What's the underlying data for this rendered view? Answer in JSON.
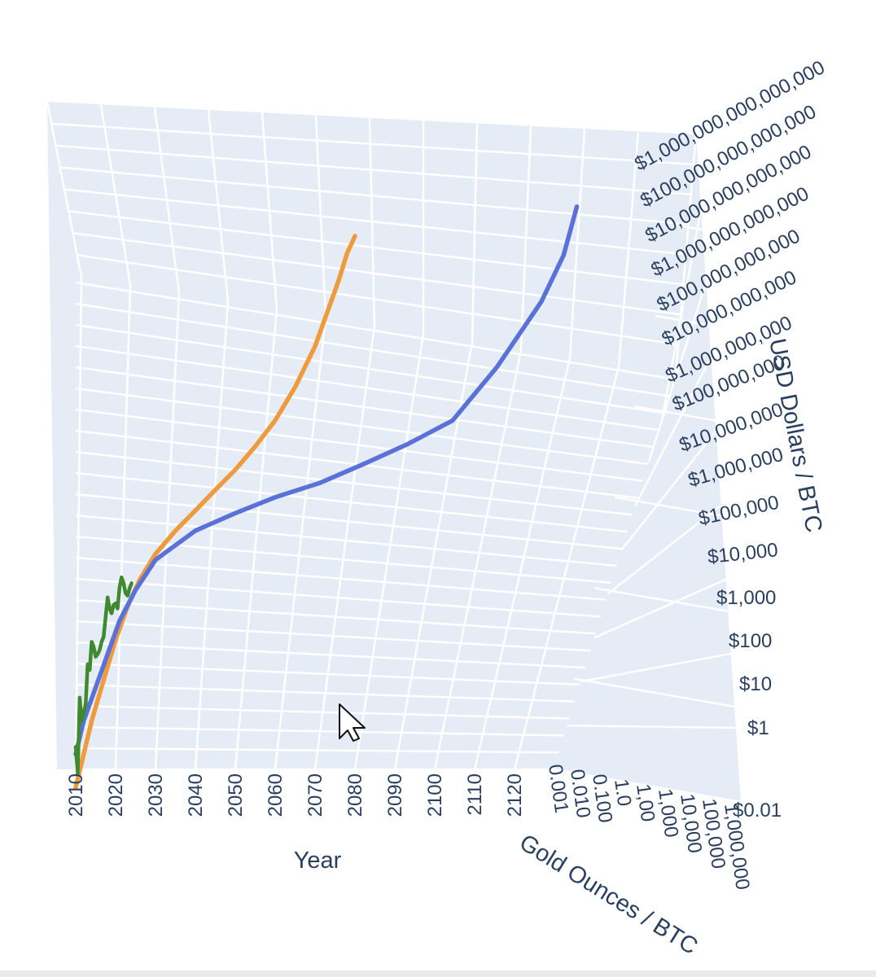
{
  "chart_data": {
    "type": "line",
    "dimensions": "3d",
    "xlabel": "Year",
    "ylabel": "Gold Ounces / BTC",
    "zlabel": "USD Dollars / BTC",
    "x_tick_labels": [
      "2010",
      "2020",
      "2030",
      "2040",
      "2050",
      "2060",
      "2070",
      "2080",
      "2090",
      "2100",
      "2110",
      "2120"
    ],
    "y_tick_labels": [
      "0.001",
      "0.010",
      "0.100",
      "1.0",
      "1,00",
      "1,000",
      "10,000",
      "100,000",
      "1,000,000"
    ],
    "z_tick_labels": [
      "$0.01",
      "$1",
      "$10",
      "$100",
      "$1,000",
      "$10,000",
      "$100,000",
      "$1,000,000",
      "$10,000,000",
      "$100,000,000",
      "$1,000,000,000",
      "$10,000,000,000",
      "$100,000,000,000",
      "$1,000,000,000,000",
      "$10,000,000,000,000",
      "$100,000,000,000,000",
      "$1,000,000,000,000,000"
    ],
    "x_range": [
      2010,
      2130
    ],
    "z_scale": "log",
    "background": "#e5ecf6",
    "grid": true,
    "legend": "none",
    "series": [
      {
        "color": "#ef9a3d",
        "x": [
          2010,
          2012,
          2014,
          2017,
          2020,
          2023,
          2026,
          2030,
          2035,
          2040,
          2045,
          2050,
          2055,
          2060,
          2065,
          2070,
          2073,
          2076,
          2078,
          2080
        ],
        "z": [
          0.03,
          0.3,
          3,
          50,
          800,
          8000,
          50000,
          300000,
          1500000,
          6000000,
          25000000,
          100000000,
          500000000,
          3000000000,
          30000000000,
          500000000000,
          5000000000000,
          50000000000000,
          300000000000000,
          1000000000000000
        ]
      },
      {
        "color": "#5a72d8",
        "x": [
          2010,
          2012,
          2015,
          2018,
          2021,
          2025,
          2030,
          2040,
          2050,
          2060,
          2070,
          2080,
          2090,
          2100,
          2110,
          2120,
          2125,
          2128
        ],
        "z": [
          0.3,
          3,
          30,
          300,
          3000,
          25000,
          200000,
          1500000,
          5000000,
          15000000,
          40000000,
          150000000,
          600000000,
          3000000000,
          20000000000,
          300000000000,
          3000000000000,
          50000000000000
        ]
      },
      {
        "color": "#3f8a2e",
        "x": [
          2010.0,
          2010.5,
          2011.0,
          2011.5,
          2012.0,
          2012.5,
          2013.0,
          2013.5,
          2014.0,
          2014.5,
          2015.0,
          2015.5,
          2016.0,
          2016.5,
          2017.0,
          2017.5,
          2018.0,
          2018.5,
          2019.0,
          2019.5,
          2020.0,
          2020.5,
          2021.0,
          2021.5,
          2022.0,
          2022.5,
          2023.0,
          2023.5,
          2024.0
        ],
        "z": [
          0.5,
          0.08,
          15,
          3,
          5,
          10,
          150,
          100,
          700,
          500,
          250,
          300,
          400,
          700,
          1000,
          4000,
          15000,
          7000,
          5000,
          9000,
          10000,
          7000,
          30000,
          60000,
          40000,
          20000,
          17000,
          28000,
          40000
        ]
      }
    ]
  }
}
